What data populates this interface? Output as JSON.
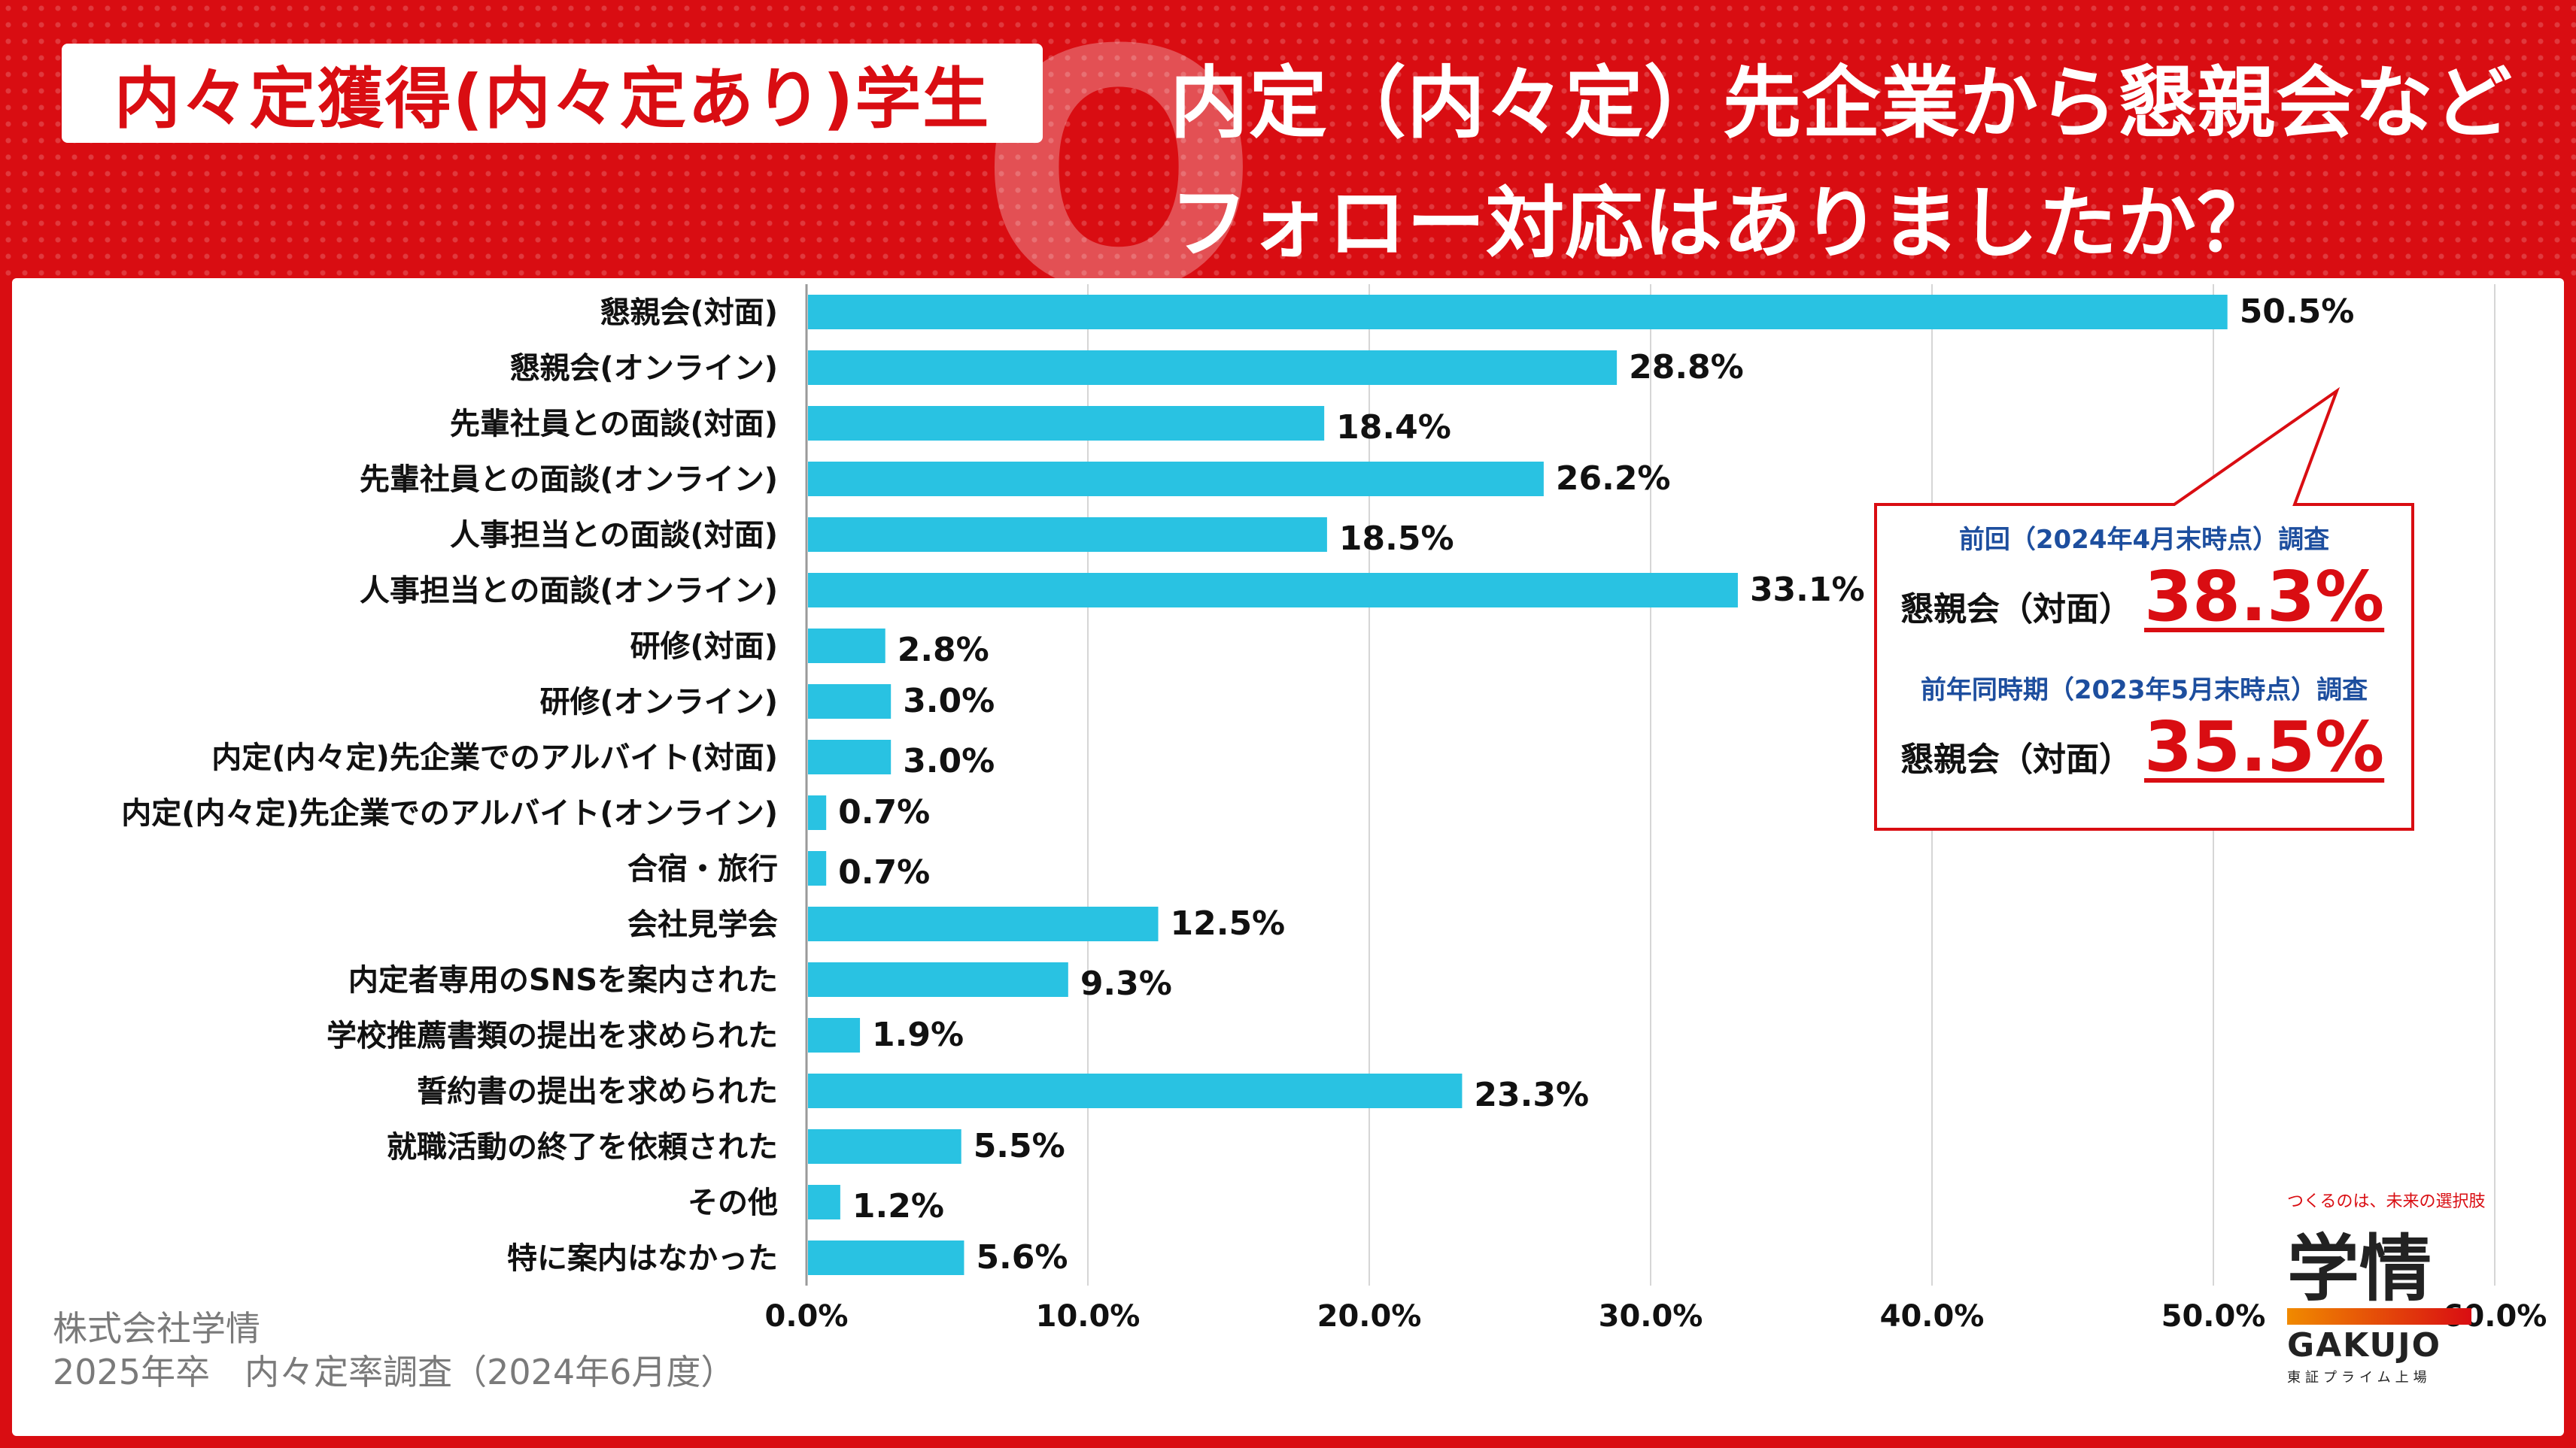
{
  "header": {
    "tag": "内々定獲得(内々定あり)学生",
    "q_mark": "Q",
    "question_line1": "内定（内々定）先企業から懇親会など",
    "question_line2": "フォロー対応はありましたか？"
  },
  "callout": {
    "prev_heading": "前回（2024年4月末時点）調査",
    "prev_label": "懇親会（対面）",
    "prev_value": "38.3%",
    "lastyear_heading": "前年同時期（2023年5月末時点）調査",
    "lastyear_label": "懇親会（対面）",
    "lastyear_value": "35.5%"
  },
  "source": {
    "company": "株式会社学情",
    "survey": "2025年卒　内々定率調査（2024年6月度）"
  },
  "logo": {
    "tagline": "つくるのは、未来の選択肢",
    "kanji": "学情",
    "name": "GAKUJO",
    "sub": "東証プライム上場"
  },
  "colors": {
    "bar": "#29c2e2",
    "accent": "#d90d12",
    "navy": "#1d4e9e"
  },
  "chart_data": {
    "type": "bar",
    "orientation": "horizontal",
    "title": "内定（内々定）先企業から懇親会などフォロー対応はありましたか？",
    "categories": [
      "懇親会(対面)",
      "懇親会(オンライン)",
      "先輩社員との面談(対面)",
      "先輩社員との面談(オンライン)",
      "人事担当との面談(対面)",
      "人事担当との面談(オンライン)",
      "研修(対面)",
      "研修(オンライン)",
      "内定(内々定)先企業でのアルバイト(対面)",
      "内定(内々定)先企業でのアルバイト(オンライン)",
      "合宿・旅行",
      "会社見学会",
      "内定者専用のSNSを案内された",
      "学校推薦書類の提出を求められた",
      "誓約書の提出を求められた",
      "就職活動の終了を依頼された",
      "その他",
      "特に案内はなかった"
    ],
    "values": [
      50.5,
      28.8,
      18.4,
      26.2,
      18.5,
      33.1,
      2.8,
      3.0,
      3.0,
      0.7,
      0.7,
      12.5,
      9.3,
      1.9,
      23.3,
      5.5,
      1.2,
      5.6
    ],
    "value_labels": [
      "50.5%",
      "28.8%",
      "18.4%",
      "26.2%",
      "18.5%",
      "33.1%",
      "2.8%",
      "3.0%",
      "3.0%",
      "0.7%",
      "0.7%",
      "12.5%",
      "9.3%",
      "1.9%",
      "23.3%",
      "5.5%",
      "1.2%",
      "5.6%"
    ],
    "xlim": [
      0,
      60
    ],
    "xticks": [
      "0.0%",
      "10.0%",
      "20.0%",
      "30.0%",
      "40.0%",
      "50.0%",
      "60.0%"
    ],
    "grid": true
  }
}
